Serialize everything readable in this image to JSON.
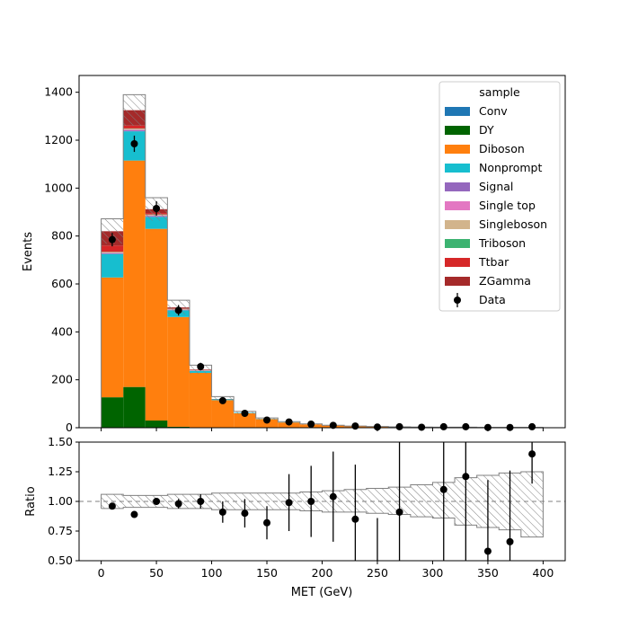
{
  "chart_data": [
    {
      "type": "bar",
      "subtype": "stacked-histogram",
      "ylabel": "Events",
      "xlim": [
        -20,
        420
      ],
      "ylim": [
        0,
        1470
      ],
      "yticks": [
        0,
        200,
        400,
        600,
        800,
        1000,
        1200,
        1400
      ],
      "bin_edges": [
        0,
        20,
        40,
        60,
        80,
        100,
        120,
        140,
        160,
        180,
        200,
        220,
        240,
        260,
        280,
        300,
        320,
        340,
        360,
        380,
        400
      ],
      "legend": {
        "title": "sample",
        "placement": "top-right"
      },
      "series": [
        {
          "name": "Conv",
          "color": "#1f77b4",
          "values": [
            0,
            0,
            0,
            0,
            0,
            0,
            0,
            0,
            0,
            0,
            0,
            0,
            0,
            0,
            0,
            0,
            0,
            0,
            0,
            0
          ]
        },
        {
          "name": "DY",
          "color": "#006400",
          "values": [
            127,
            170,
            30,
            4,
            1,
            0,
            0,
            0,
            0,
            0,
            0,
            0,
            0,
            0,
            0,
            0,
            0,
            0,
            0,
            0
          ]
        },
        {
          "name": "Diboson",
          "color": "#ff7f0e",
          "values": [
            500,
            945,
            800,
            458,
            228,
            115,
            60,
            36,
            22,
            14,
            9,
            6,
            4,
            3,
            2,
            2,
            2,
            1,
            1,
            1
          ]
        },
        {
          "name": "Nonprompt",
          "color": "#17becf",
          "values": [
            98,
            122,
            50,
            28,
            8,
            4,
            2,
            1,
            1,
            0,
            0,
            0,
            0,
            0,
            0,
            0,
            0,
            0,
            0,
            0
          ]
        },
        {
          "name": "Signal",
          "color": "#9467bd",
          "values": [
            3,
            4,
            4,
            2,
            1,
            0,
            0,
            0,
            0,
            0,
            0,
            0,
            0,
            0,
            0,
            0,
            0,
            0,
            0,
            0
          ]
        },
        {
          "name": "Single top",
          "color": "#e377c2",
          "values": [
            2,
            3,
            2,
            1,
            1,
            0,
            0,
            0,
            0,
            0,
            0,
            0,
            0,
            0,
            0,
            0,
            0,
            0,
            0,
            0
          ]
        },
        {
          "name": "Singleboson",
          "color": "#d2b48c",
          "values": [
            3,
            4,
            3,
            2,
            1,
            0,
            0,
            0,
            0,
            0,
            0,
            0,
            0,
            0,
            0,
            0,
            0,
            0,
            0,
            0
          ]
        },
        {
          "name": "Triboson",
          "color": "#3cb371",
          "values": [
            1,
            1,
            1,
            1,
            0,
            0,
            0,
            0,
            0,
            0,
            0,
            0,
            0,
            0,
            0,
            0,
            0,
            0,
            0,
            0
          ]
        },
        {
          "name": "Ttbar",
          "color": "#d62728",
          "values": [
            26,
            12,
            6,
            2,
            1,
            0,
            0,
            0,
            0,
            0,
            0,
            0,
            0,
            0,
            0,
            0,
            0,
            0,
            0,
            0
          ]
        },
        {
          "name": "ZGamma",
          "color": "#a52a2a",
          "values": [
            60,
            64,
            16,
            4,
            2,
            1,
            0,
            0,
            0,
            0,
            0,
            0,
            0,
            0,
            0,
            0,
            0,
            0,
            0,
            0
          ]
        }
      ],
      "mc_uncertainty": [
        52,
        65,
        48,
        30,
        18,
        10,
        6,
        4,
        2.5,
        2,
        1.5,
        1.2,
        1,
        0.7,
        0.6,
        0.5,
        0.4,
        0.4,
        0.3,
        0.3
      ],
      "data": {
        "name": "Data",
        "x": [
          10,
          30,
          50,
          70,
          90,
          110,
          130,
          150,
          170,
          190,
          210,
          230,
          250,
          270,
          290,
          310,
          330,
          350,
          370,
          390
        ],
        "y": [
          785,
          1185,
          915,
          490,
          255,
          113,
          60,
          32,
          24,
          15,
          10,
          7,
          3,
          4,
          2,
          4,
          4,
          1,
          1,
          4
        ],
        "yerr": [
          28,
          34,
          30,
          22,
          16,
          11,
          8,
          6,
          5,
          4,
          3,
          3,
          2,
          2,
          1.5,
          2,
          2,
          1,
          1,
          2
        ]
      }
    },
    {
      "type": "scatter",
      "subtype": "ratio",
      "xlabel": "MET (GeV)",
      "ylabel": "Ratio",
      "xlim": [
        -20,
        420
      ],
      "ylim": [
        0.5,
        1.5
      ],
      "xticks": [
        0,
        50,
        100,
        150,
        200,
        250,
        300,
        350,
        400
      ],
      "yticks": [
        0.5,
        0.75,
        1.0,
        1.25,
        1.5
      ],
      "ytick_labels": [
        "0.50",
        "0.75",
        "1.00",
        "1.25",
        "1.50"
      ],
      "reference_line": 1.0,
      "band": {
        "bin_edges": [
          0,
          20,
          40,
          60,
          80,
          100,
          120,
          140,
          160,
          180,
          200,
          220,
          240,
          260,
          280,
          300,
          320,
          340,
          360,
          380,
          400
        ],
        "low": [
          0.94,
          0.95,
          0.95,
          0.94,
          0.94,
          0.93,
          0.93,
          0.93,
          0.93,
          0.92,
          0.91,
          0.91,
          0.9,
          0.89,
          0.87,
          0.86,
          0.8,
          0.78,
          0.76,
          0.7
        ],
        "high": [
          1.06,
          1.05,
          1.05,
          1.06,
          1.06,
          1.07,
          1.07,
          1.07,
          1.07,
          1.08,
          1.09,
          1.1,
          1.11,
          1.12,
          1.14,
          1.16,
          1.2,
          1.22,
          1.24,
          1.25
        ]
      },
      "x": [
        10,
        30,
        50,
        70,
        90,
        110,
        130,
        150,
        170,
        190,
        210,
        230,
        250,
        270,
        310,
        330,
        350,
        370,
        390
      ],
      "y": [
        0.96,
        0.89,
        1.0,
        0.98,
        1.0,
        0.91,
        0.9,
        0.82,
        0.99,
        1.0,
        1.04,
        0.85,
        0.4,
        0.91,
        1.1,
        1.21,
        0.58,
        0.66,
        1.4
      ],
      "yerr": [
        0.02,
        0.02,
        0.03,
        0.04,
        0.06,
        0.09,
        0.12,
        0.14,
        0.24,
        0.3,
        0.38,
        0.46,
        0.46,
        0.7,
        0.9,
        0.9,
        0.6,
        0.6,
        0.25
      ]
    }
  ]
}
